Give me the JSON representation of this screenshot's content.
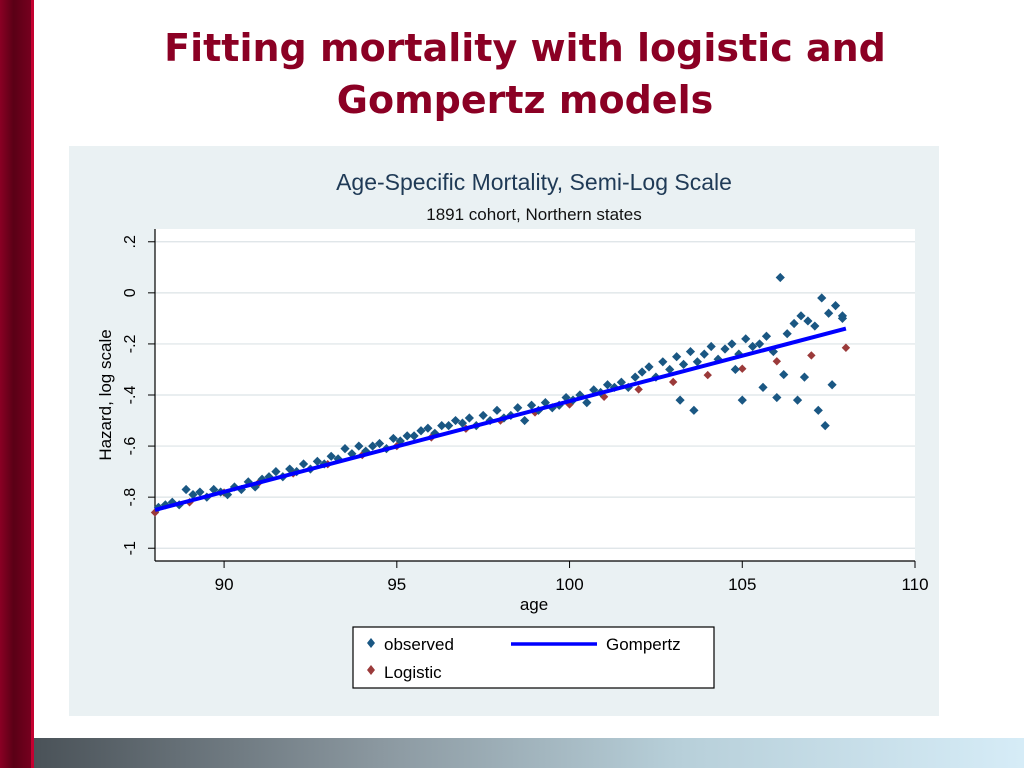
{
  "slide": {
    "title_line1": "Fitting mortality with logistic and",
    "title_line2": "Gompertz models"
  },
  "colors": {
    "title": "#8b0024",
    "observed": "#1a5783",
    "gompertz": "#0000ff",
    "logistic": "#9b3a3a",
    "panel_bg": "#eaf1f3"
  },
  "chart_data": {
    "type": "scatter",
    "title": "Age-Specific Mortality, Semi-Log Scale",
    "subtitle": "1891 cohort, Northern states",
    "xlabel": "age",
    "ylabel": "Hazard, log scale",
    "xlim": [
      88,
      110
    ],
    "ylim": [
      -1.05,
      0.25
    ],
    "x_ticks": [
      90,
      95,
      100,
      105,
      110
    ],
    "x_tick_labels": [
      "90",
      "95",
      "100",
      "105",
      "110"
    ],
    "y_ticks": [
      -1,
      -0.8,
      -0.6,
      -0.4,
      -0.2,
      0,
      0.2
    ],
    "y_tick_labels": [
      "-1",
      "-.8",
      "-.6",
      "-.4",
      "-.2",
      "0",
      ".2"
    ],
    "grid": true,
    "legend_position": "bottom",
    "series": [
      {
        "name": "observed",
        "type": "scatter",
        "marker": "diamond",
        "x": [
          88.1,
          88.3,
          88.5,
          88.7,
          88.9,
          89.1,
          89.3,
          89.5,
          89.7,
          89.9,
          90.1,
          90.3,
          90.5,
          90.7,
          90.9,
          91.1,
          91.3,
          91.5,
          91.7,
          91.9,
          92.1,
          92.3,
          92.5,
          92.7,
          92.9,
          93.1,
          93.3,
          93.5,
          93.7,
          93.9,
          94.1,
          94.3,
          94.5,
          94.7,
          94.9,
          95.1,
          95.3,
          95.5,
          95.7,
          95.9,
          96.1,
          96.3,
          96.5,
          96.7,
          96.9,
          97.1,
          97.3,
          97.5,
          97.7,
          97.9,
          98.1,
          98.3,
          98.5,
          98.7,
          98.9,
          99.1,
          99.3,
          99.5,
          99.7,
          99.9,
          100.1,
          100.3,
          100.5,
          100.7,
          100.9,
          101.1,
          101.3,
          101.5,
          101.7,
          101.9,
          102.1,
          102.3,
          102.5,
          102.7,
          102.9,
          103.1,
          103.3,
          103.5,
          103.7,
          103.9,
          104.1,
          104.3,
          104.5,
          104.7,
          104.9,
          105.1,
          105.3,
          105.5,
          105.7,
          105.9,
          106.1,
          106.3,
          106.5,
          106.7,
          106.9,
          107.1,
          107.3,
          107.5,
          107.7,
          107.9,
          105.0,
          105.6,
          106.2,
          106.6,
          107.2,
          107.6,
          103.2,
          103.6,
          104.8,
          106.0,
          106.8,
          107.4,
          107.9
        ],
        "y": [
          -0.84,
          -0.83,
          -0.82,
          -0.83,
          -0.77,
          -0.79,
          -0.78,
          -0.8,
          -0.77,
          -0.78,
          -0.79,
          -0.76,
          -0.77,
          -0.74,
          -0.76,
          -0.73,
          -0.72,
          -0.7,
          -0.72,
          -0.69,
          -0.7,
          -0.67,
          -0.69,
          -0.66,
          -0.67,
          -0.64,
          -0.65,
          -0.61,
          -0.63,
          -0.6,
          -0.62,
          -0.6,
          -0.59,
          -0.61,
          -0.57,
          -0.58,
          -0.56,
          -0.56,
          -0.54,
          -0.53,
          -0.55,
          -0.52,
          -0.52,
          -0.5,
          -0.51,
          -0.49,
          -0.52,
          -0.48,
          -0.5,
          -0.46,
          -0.49,
          -0.48,
          -0.45,
          -0.5,
          -0.44,
          -0.46,
          -0.43,
          -0.45,
          -0.44,
          -0.41,
          -0.42,
          -0.4,
          -0.43,
          -0.38,
          -0.39,
          -0.36,
          -0.37,
          -0.35,
          -0.37,
          -0.33,
          -0.31,
          -0.29,
          -0.33,
          -0.27,
          -0.3,
          -0.25,
          -0.28,
          -0.23,
          -0.27,
          -0.24,
          -0.21,
          -0.26,
          -0.22,
          -0.2,
          -0.24,
          -0.18,
          -0.21,
          -0.2,
          -0.17,
          -0.23,
          0.06,
          -0.16,
          -0.12,
          -0.09,
          -0.11,
          -0.13,
          -0.02,
          -0.08,
          -0.05,
          -0.09,
          -0.42,
          -0.37,
          -0.32,
          -0.42,
          -0.46,
          -0.36,
          -0.42,
          -0.46,
          -0.3,
          -0.41,
          -0.33,
          -0.52,
          -0.1
        ]
      },
      {
        "name": "Gompertz",
        "type": "line",
        "x": [
          88,
          108
        ],
        "y": [
          -0.85,
          -0.14
        ]
      },
      {
        "name": "Logistic",
        "type": "scatter",
        "marker": "diamond",
        "x": [
          88,
          89,
          90,
          91,
          92,
          93,
          94,
          95,
          96,
          97,
          98,
          99,
          100,
          101,
          102,
          103,
          104,
          105,
          106,
          107,
          108
        ],
        "y": [
          -0.86,
          -0.82,
          -0.782,
          -0.744,
          -0.707,
          -0.671,
          -0.635,
          -0.6,
          -0.566,
          -0.532,
          -0.5,
          -0.468,
          -0.437,
          -0.407,
          -0.378,
          -0.349,
          -0.322,
          -0.297,
          -0.268,
          -0.245,
          -0.215
        ]
      }
    ]
  }
}
